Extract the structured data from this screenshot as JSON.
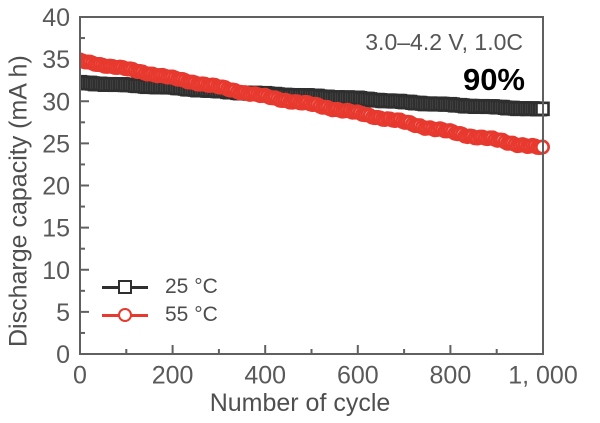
{
  "colors": {
    "background": "#ffffff",
    "axis": "#606060",
    "tick_labels": "#595959",
    "axis_titles": "#4f4f4f",
    "legend_text": "#4d4d4d",
    "annotation_condition": "#555555",
    "annotation_retention": "#000000"
  },
  "chart_data": {
    "type": "line",
    "title": "",
    "xlabel": "Number of cycle",
    "ylabel": "Discharge capacity (mA h)",
    "xlim": [
      0,
      1000
    ],
    "ylim": [
      0,
      40
    ],
    "x_major_ticks": [
      0,
      200,
      400,
      600,
      800,
      1000
    ],
    "x_tick_labels": [
      "0",
      "200",
      "400",
      "600",
      "800",
      "1, 000"
    ],
    "x_minor_step": 100,
    "y_major_ticks": [
      0,
      5,
      10,
      15,
      20,
      25,
      30,
      35,
      40
    ],
    "y_tick_labels": [
      "0",
      "5",
      "10",
      "15",
      "20",
      "25",
      "30",
      "35",
      "40"
    ],
    "y_minor_step": 2.5,
    "grid": false,
    "legend_position": "lower left",
    "annotations": {
      "condition": "3.0–4.2 V, 1.0C",
      "retention": "90%"
    },
    "x": [
      0,
      100,
      200,
      300,
      400,
      500,
      600,
      700,
      800,
      900,
      1000
    ],
    "series": [
      {
        "name": "25 °C",
        "color": "#2f2f2f",
        "marker": "open-square",
        "values": [
          32.2,
          31.9,
          31.6,
          31.2,
          30.9,
          30.6,
          30.3,
          29.9,
          29.6,
          29.3,
          29.0
        ]
      },
      {
        "name": "55 °C",
        "color": "#e8392f",
        "marker": "open-circle",
        "values": [
          34.8,
          33.8,
          32.7,
          31.7,
          30.6,
          29.6,
          28.5,
          27.5,
          26.4,
          25.4,
          24.3
        ]
      }
    ]
  }
}
